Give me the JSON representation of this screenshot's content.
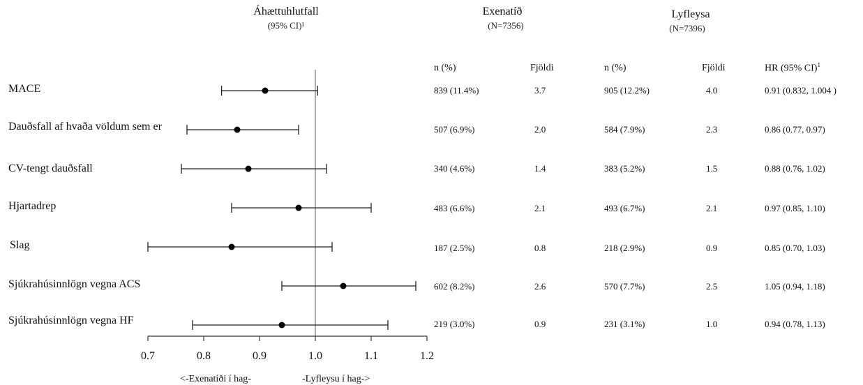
{
  "headers": {
    "hr_title": "Áhættuhlutfall",
    "hr_sub": "(95% CI)¹",
    "group1_title": "Exenatíð",
    "group1_n": "(N=7356)",
    "group2_title": "Lyfleysa",
    "group2_n": "(N=7396)"
  },
  "columns": {
    "n_pct_1": "n (%)",
    "rate_1": "Fjöldi",
    "n_pct_2": "n (%)",
    "rate_2": "Fjöldi",
    "hr_ci": "HR (95% CI)",
    "hr_ci_sup": "1"
  },
  "rows": [
    {
      "label": "MACE",
      "ex_n": "839 (11.4%)",
      "ex_rate": "3.7",
      "pl_n": "905 (12.2%)",
      "pl_rate": "4.0",
      "hr_text": "0.91 (0.832, 1.004 )"
    },
    {
      "label": "Dauðsfall af hvaða völdum sem er",
      "ex_n": "507 (6.9%)",
      "ex_rate": "2.0",
      "pl_n": "584 (7.9%)",
      "pl_rate": "2.3",
      "hr_text": "0.86 (0.77, 0.97)"
    },
    {
      "label": "CV-tengt dauðsfall",
      "ex_n": "340 (4.6%)",
      "ex_rate": "1.4",
      "pl_n": "383 (5.2%)",
      "pl_rate": "1.5",
      "hr_text": "0.88 (0.76, 1.02)"
    },
    {
      "label": "Hjartadrep",
      "ex_n": "483 (6.6%)",
      "ex_rate": "2.1",
      "pl_n": "493 (6.7%)",
      "pl_rate": "2.1",
      "hr_text": "0.97 (0.85, 1.10)"
    },
    {
      "label": "Slag",
      "ex_n": "187 (2.5%)",
      "ex_rate": "0.8",
      "pl_n": "218 (2.9%)",
      "pl_rate": "0.9",
      "hr_text": "0.85 (0.70, 1.03)"
    },
    {
      "label": "Sjúkrahúsinnlögn vegna ACS",
      "ex_n": "602 (8.2%)",
      "ex_rate": "2.6",
      "pl_n": "570 (7.7%)",
      "pl_rate": "2.5",
      "hr_text": "1.05 (0.94, 1.18)"
    },
    {
      "label": "Sjúkrahúsinnlögn vegna HF",
      "ex_n": "219 (3.0%)",
      "ex_rate": "0.9",
      "pl_n": "231 (3.1%)",
      "pl_rate": "1.0",
      "hr_text": "0.94 (0.78, 1.13)"
    }
  ],
  "favors": {
    "left": "<-Exenatíði í hag-",
    "right": "-Lyfleysu í hag->"
  },
  "chart_data": {
    "type": "forest",
    "categories": [
      "MACE",
      "Dauðsfall af hvaða völdum sem er",
      "CV-tengt dauðsfall",
      "Hjartadrep",
      "Slag",
      "Sjúkrahúsinnlögn vegna ACS",
      "Sjúkrahúsinnlögn vegna HF"
    ],
    "hr": [
      0.91,
      0.86,
      0.88,
      0.97,
      0.85,
      1.05,
      0.94
    ],
    "ci_low": [
      0.832,
      0.77,
      0.76,
      0.85,
      0.7,
      0.94,
      0.78
    ],
    "ci_high": [
      1.004,
      0.97,
      1.02,
      1.1,
      1.03,
      1.18,
      1.13
    ],
    "reference_line": 1.0,
    "xlim": [
      0.7,
      1.2
    ],
    "xticks": [
      0.7,
      0.8,
      0.9,
      1.0,
      1.1,
      1.2
    ],
    "xtick_labels": [
      "0.7",
      "0.8",
      "0.9",
      "1.0",
      "1.1",
      "1.2"
    ],
    "grid": false
  }
}
